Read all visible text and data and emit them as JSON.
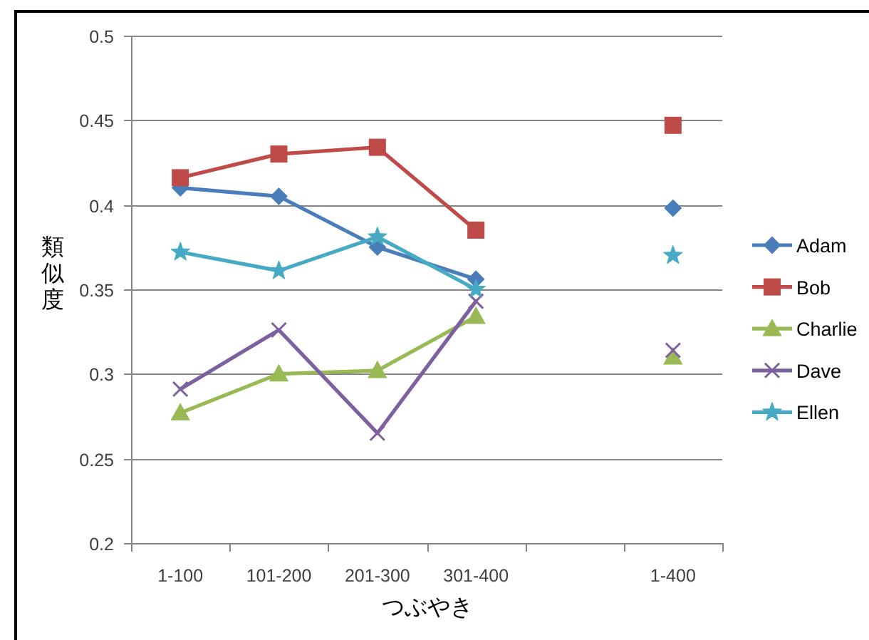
{
  "chart_data": {
    "type": "line",
    "xlabel": "つぶやき",
    "ylabel": "類似度",
    "categories": [
      "1-100",
      "101-200",
      "201-300",
      "301-400",
      null,
      "1-400"
    ],
    "ylim": [
      0.2,
      0.5
    ],
    "yticks": [
      0.2,
      0.25,
      0.3,
      0.35,
      0.4,
      0.45,
      0.5
    ],
    "grid": "y",
    "legend": "right",
    "line_style": "solid",
    "series": [
      {
        "name": "Adam",
        "color": "#4a7ebb",
        "marker": "diamond",
        "values": [
          0.41,
          0.405,
          0.375,
          0.356,
          null,
          0.398
        ]
      },
      {
        "name": "Bob",
        "color": "#be4b48",
        "marker": "square",
        "values": [
          0.416,
          0.43,
          0.434,
          0.385,
          null,
          0.447
        ]
      },
      {
        "name": "Charlie",
        "color": "#98b954",
        "marker": "triangle",
        "values": [
          0.277,
          0.3,
          0.302,
          0.334,
          null,
          0.31
        ]
      },
      {
        "name": "Dave",
        "color": "#7d60a0",
        "marker": "cross",
        "values": [
          0.291,
          0.326,
          0.265,
          0.343,
          null,
          0.314
        ]
      },
      {
        "name": "Ellen",
        "color": "#46aac5",
        "marker": "star",
        "values": [
          0.372,
          0.361,
          0.381,
          0.35,
          null,
          0.37
        ]
      }
    ]
  }
}
